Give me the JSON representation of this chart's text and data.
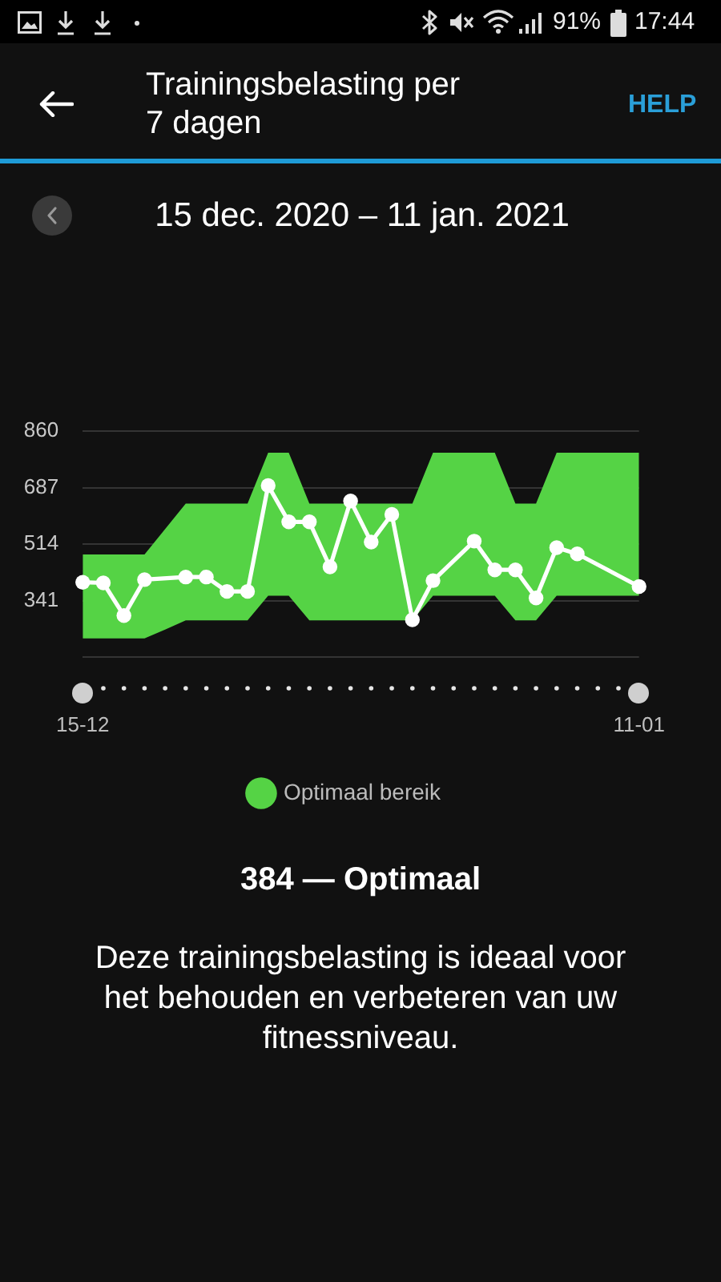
{
  "chart_data": {
    "type": "line",
    "title": "Trainingsbelasting per 7 dagen",
    "subtitle": "15 dec. 2020 – 11 jan. 2021",
    "annotations": [
      "HELP",
      "384 — Optimaal",
      "Deze trainingsbelasting is ideaal voor het behouden en verbeteren van uw fitnessniveau.",
      "91%",
      "17:44"
    ],
    "categories": [
      "15-12",
      null,
      null,
      null,
      null,
      null,
      null,
      null,
      null,
      null,
      null,
      null,
      null,
      null,
      null,
      null,
      null,
      null,
      null,
      null,
      null,
      null,
      null,
      null,
      null,
      null,
      null,
      "11-01"
    ],
    "series": [
      {
        "name": "Optimaal bereik",
        "type": "area",
        "color": "#55d345",
        "values": [
          null,
          null,
          null,
          null,
          null,
          null,
          null,
          null,
          null,
          null,
          null,
          null,
          null,
          null,
          null,
          null,
          null,
          null,
          null,
          null,
          null,
          null,
          null,
          null,
          null,
          null,
          null,
          null
        ],
        "upper": [
          482,
          482,
          482,
          482,
          560,
          638,
          638,
          638,
          638,
          794,
          794,
          638,
          638,
          638,
          638,
          638,
          638,
          794,
          794,
          794,
          794,
          638,
          638,
          794,
          794,
          794,
          794,
          794
        ],
        "lower": [
          225,
          225,
          225,
          225,
          252,
          280,
          280,
          280,
          280,
          356,
          356,
          280,
          280,
          280,
          280,
          280,
          280,
          356,
          356,
          356,
          356,
          280,
          280,
          356,
          356,
          356,
          356,
          356
        ]
      },
      {
        "color": "#ffffff",
        "values": [
          397,
          395,
          295,
          405,
          null,
          413,
          413,
          369,
          369,
          693,
          582,
          582,
          444,
          646,
          520,
          605,
          282,
          402,
          null,
          523,
          435,
          435,
          349,
          503,
          484,
          null,
          null,
          384
        ]
      }
    ],
    "ylim": [
      168,
      860
    ],
    "yticks": [
      {
        "value": 168,
        "label": null
      },
      341,
      514,
      687,
      860
    ],
    "grid": "y",
    "legend": "bottom",
    "marker": "circle"
  }
}
